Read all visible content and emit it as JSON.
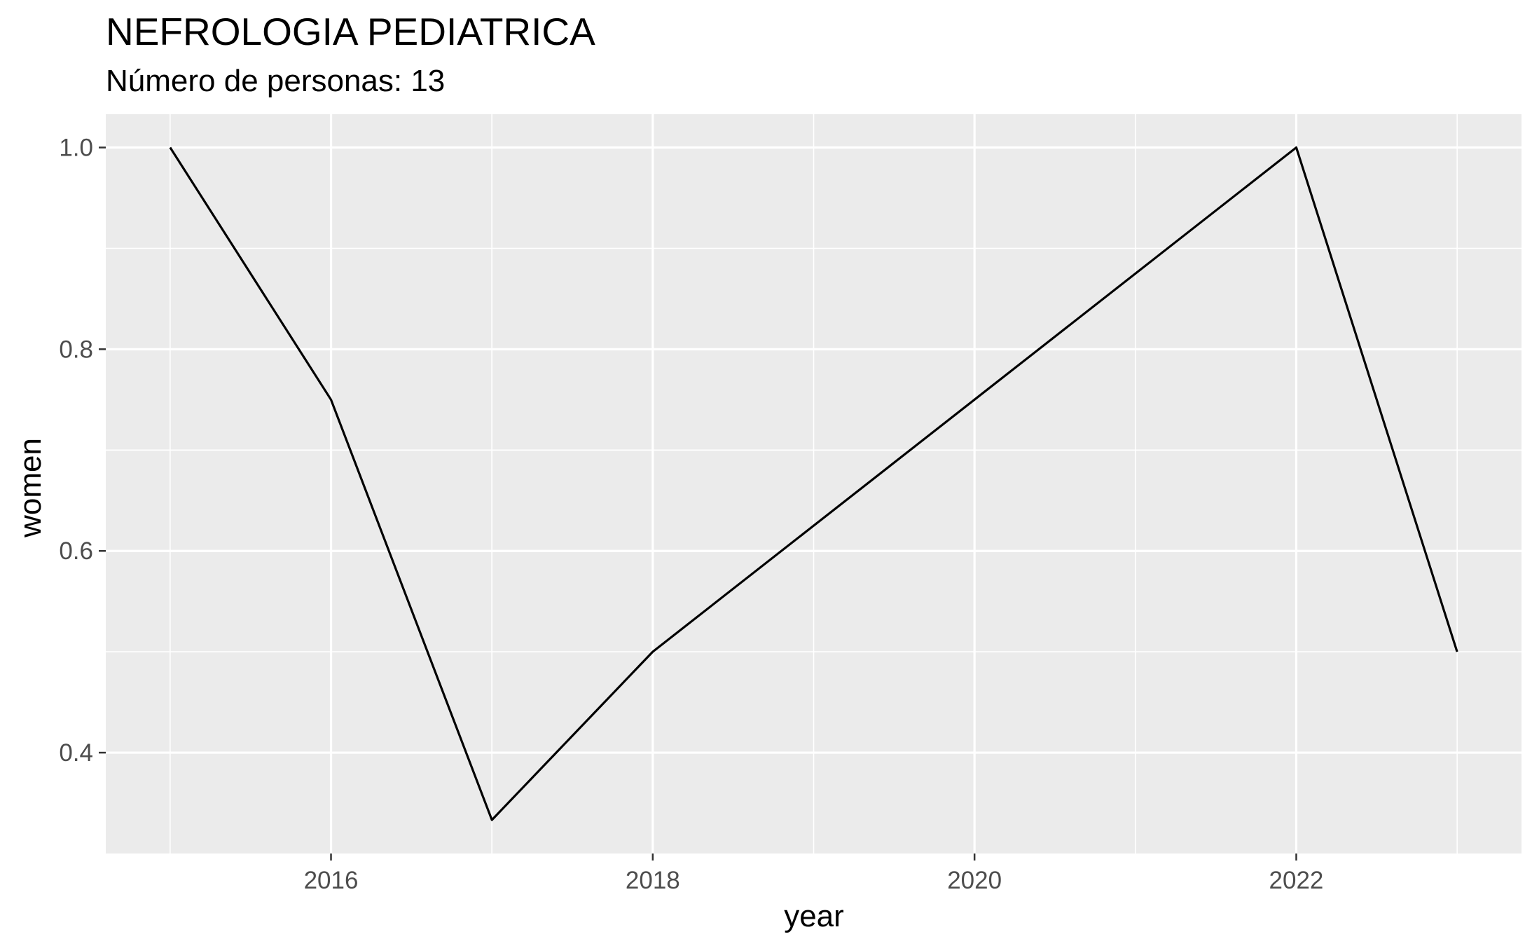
{
  "chart_data": {
    "type": "line",
    "title": "NEFROLOGIA PEDIATRICA",
    "subtitle": "Número de personas: 13",
    "xlabel": "year",
    "ylabel": "women",
    "x": [
      2015,
      2016,
      2017,
      2018,
      2022,
      2023
    ],
    "series": [
      {
        "name": "women",
        "values": [
          1.0,
          0.75,
          0.3333,
          0.5,
          1.0,
          0.5
        ]
      }
    ],
    "xlim": [
      2014.6,
      2023.4
    ],
    "ylim": [
      0.3,
      1.033
    ],
    "x_major_ticks": [
      2016,
      2018,
      2020,
      2022
    ],
    "x_tick_labels": [
      "2016",
      "2018",
      "2020",
      "2022"
    ],
    "x_minor_ticks": [
      2015,
      2017,
      2019,
      2021,
      2023
    ],
    "y_major_ticks": [
      0.4,
      0.6,
      0.8,
      1.0
    ],
    "y_tick_labels": [
      "0.4",
      "0.6",
      "0.8",
      "1.0"
    ],
    "y_minor_ticks": [
      0.5,
      0.7,
      0.9
    ],
    "grid": true,
    "colors": {
      "panel_background": "#ebebeb",
      "grid_line": "#ffffff",
      "line": "#000000",
      "tick_mark": "#333333"
    }
  }
}
